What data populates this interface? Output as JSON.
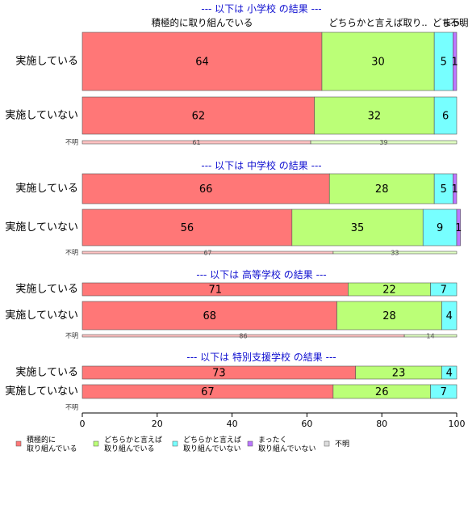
{
  "chart_data": {
    "type": "bar",
    "orientation": "horizontal",
    "stacked": true,
    "xlim": [
      0,
      100
    ],
    "xticks": [
      0,
      20,
      40,
      60,
      80,
      100
    ],
    "legend_position": "bottom",
    "series": [
      {
        "name": "積極的に\n取り組んでいる",
        "color": "#ff7777"
      },
      {
        "name": "どちらかと言えば\n取り組んでいる",
        "color": "#bbff77"
      },
      {
        "name": "どちらかと言えば\n取り組んでいない",
        "color": "#77ffff"
      },
      {
        "name": "まったく\n取り組んでいない",
        "color": "#bb77ff"
      },
      {
        "name": "不明",
        "color": "#dddddd"
      }
    ],
    "top_labels": [
      "積極的に取り組んでいる",
      "どちらかと言えば取り..",
      "どち..",
      "まっ..",
      "不明"
    ],
    "panels": [
      {
        "title": "--- 以下は 小学校 の結果 ---",
        "rows": [
          {
            "label": "実施している",
            "values": [
              64,
              30,
              5,
              1,
              0
            ]
          },
          {
            "label": "実施していない",
            "values": [
              62,
              32,
              6,
              0,
              0
            ]
          },
          {
            "label": "不明",
            "values": [
              61,
              39,
              0,
              0,
              0
            ]
          }
        ]
      },
      {
        "title": "--- 以下は 中学校 の結果 ---",
        "rows": [
          {
            "label": "実施している",
            "values": [
              66,
              28,
              5,
              1,
              0
            ]
          },
          {
            "label": "実施していない",
            "values": [
              56,
              35,
              9,
              1,
              0
            ]
          },
          {
            "label": "不明",
            "values": [
              67,
              33,
              0,
              0,
              0
            ]
          }
        ]
      },
      {
        "title": "--- 以下は 高等学校 の結果 ---",
        "rows": [
          {
            "label": "実施している",
            "values": [
              71,
              22,
              7,
              0,
              0
            ]
          },
          {
            "label": "実施していない",
            "values": [
              68,
              28,
              4,
              0,
              0
            ]
          },
          {
            "label": "不明",
            "values": [
              86,
              14,
              0,
              0,
              0
            ]
          }
        ]
      },
      {
        "title": "--- 以下は 特別支援学校 の結果 ---",
        "rows": [
          {
            "label": "実施している",
            "values": [
              73,
              23,
              4,
              0,
              0
            ]
          },
          {
            "label": "実施していない",
            "values": [
              67,
              26,
              7,
              0,
              0
            ]
          },
          {
            "label": "不明",
            "values": [
              0,
              0,
              0,
              0,
              0
            ]
          }
        ]
      }
    ]
  }
}
